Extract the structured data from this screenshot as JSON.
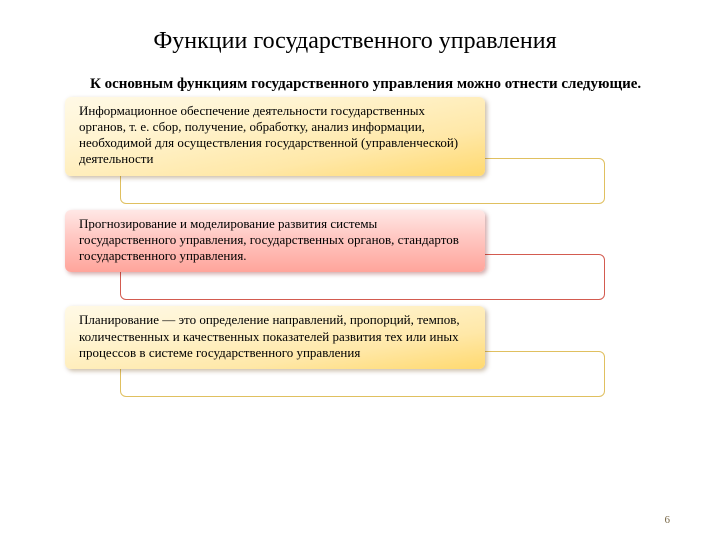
{
  "title": "Функции государственного управления",
  "subtitle": "К основным функциям государственного управления можно отнести следующие.",
  "items": [
    {
      "text": "Информационное обеспечение деятельности государственных органов, т. е. сбор, получение, обработку, анализ информации, необходимой для осуществления государственной (управленческой) деятельности",
      "box_type": "yellow",
      "outline_type": "yellow"
    },
    {
      "text": "Прогнозирование и моделирование развития системы государственного управления, государственных органов, стандартов государственного управления.",
      "box_type": "red",
      "outline_type": "red"
    },
    {
      "text": "Планирование — это определение направлений, пропорций, темпов, количественных и качественных показателей развития тех или иных процессов в системе государственного управления",
      "box_type": "yellow",
      "outline_type": "yellow"
    }
  ],
  "page_number": "6",
  "style": {
    "slide_width": 720,
    "slide_height": 540,
    "background": "#ffffff",
    "title_fontsize": 24,
    "subtitle_fontsize": 15,
    "body_fontsize": 13,
    "yellow_gradient": [
      "#fff9e6",
      "#fff4d1",
      "#ffe8a8",
      "#ffd96f"
    ],
    "red_gradient": [
      "#ffe8e6",
      "#ffcac5",
      "#ffa59b"
    ],
    "yellow_border": "#e0c060",
    "red_border": "#d35b50",
    "box_radius": 6,
    "shadow": "2px 2px 5px rgba(0,0,0,0.3)",
    "page_num_color": "#7a6a4a"
  }
}
